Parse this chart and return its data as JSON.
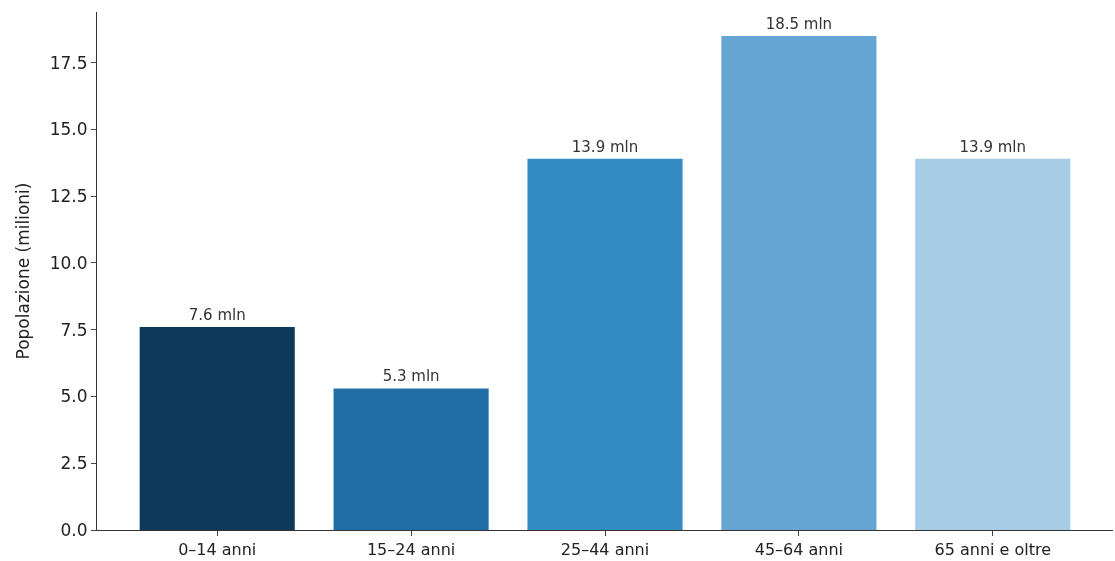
{
  "chart_data": {
    "type": "bar",
    "ylabel": "Popolazione (milioni)",
    "categories": [
      "0–14 anni",
      "15–24 anni",
      "25–44 anni",
      "45–64 anni",
      "65 anni e oltre"
    ],
    "values": [
      7.6,
      5.3,
      13.9,
      18.5,
      13.9
    ],
    "colors": [
      "#0d3a5c",
      "#1f6ea6",
      "#338bc3",
      "#66a4d4",
      "#a8cce4"
    ],
    "value_labels": [
      "7.6 mln",
      "5.3 mln",
      "13.9 mln",
      "18.5 mln",
      "13.9 mln"
    ],
    "ylim": [
      0,
      19.4
    ],
    "yticks": [
      {
        "value": 0,
        "label": "0.0"
      },
      {
        "value": 2.5,
        "label": "2.5"
      },
      {
        "value": 5,
        "label": "5.0"
      },
      {
        "value": 7.5,
        "label": "7.5"
      },
      {
        "value": 10,
        "label": "10.0"
      },
      {
        "value": 12.5,
        "label": "12.5"
      },
      {
        "value": 15,
        "label": "15.0"
      },
      {
        "value": 17.5,
        "label": "17.5"
      }
    ],
    "legend": false
  }
}
